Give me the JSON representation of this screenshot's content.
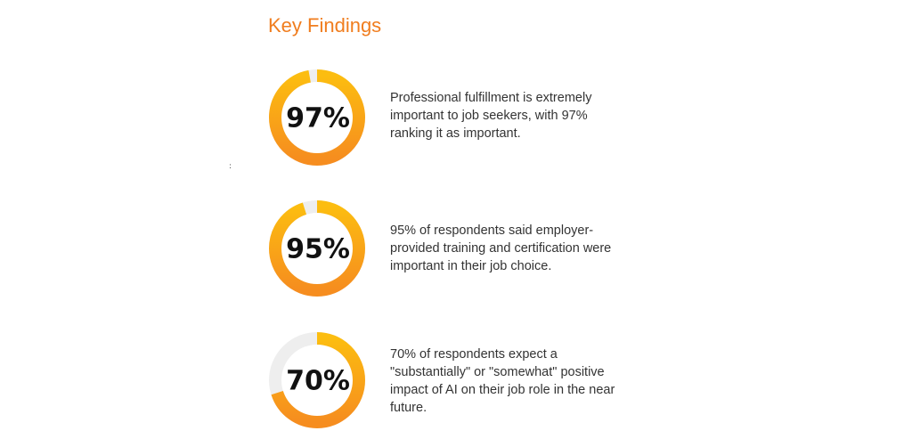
{
  "title": "Key Findings",
  "marker": ":",
  "chart_data": [
    {
      "type": "donut",
      "values": [
        97
      ],
      "value_labels": [
        "97%"
      ],
      "ylim": [
        0,
        100
      ],
      "color": "#f8a21a",
      "track_color": "#eeeeee",
      "description": "Professional fulfillment is extremely important to job seekers, with 97% ranking it as important."
    },
    {
      "type": "donut",
      "values": [
        95
      ],
      "value_labels": [
        "95%"
      ],
      "ylim": [
        0,
        100
      ],
      "color": "#f8a21a",
      "track_color": "#eeeeee",
      "description": "95% of respondents said employer-provided training and certification were important in their job choice."
    },
    {
      "type": "donut",
      "values": [
        70
      ],
      "value_labels": [
        "70%"
      ],
      "ylim": [
        0,
        100
      ],
      "color": "#f8a21a",
      "track_color": "#eeeeee",
      "description": "70% of respondents expect a \"substantially\" or \"somewhat\" positive impact of AI on their job role in the near future."
    }
  ]
}
